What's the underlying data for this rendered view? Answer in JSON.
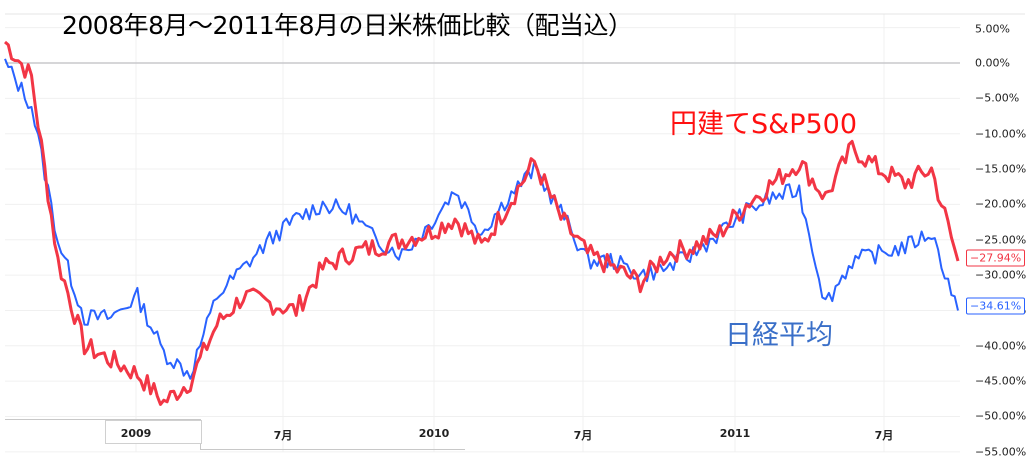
{
  "title": "2008年8月～2011年8月の日米株価比較（配当込）",
  "annotations": {
    "sp500": "円建てS&P500",
    "nikkei": "日経平均"
  },
  "y_axis": {
    "ticks": [
      "5.00%",
      "0.00%",
      "−5.00%",
      "−10.00%",
      "−15.00%",
      "−20.00%",
      "−25.00%",
      "−30.00%",
      "−35.00%",
      "−40.00%",
      "−45.00%",
      "−50.00%",
      "−55.00%"
    ]
  },
  "x_axis": {
    "ticks": [
      "2009",
      "7月",
      "2010",
      "7月",
      "2011",
      "7月"
    ]
  },
  "badges": {
    "sp500_last": "−27.94%",
    "nikkei_last": "−34.61%"
  },
  "colors": {
    "sp500": "#f23645",
    "nikkei": "#2962ff",
    "grid": "#f0f0f0"
  },
  "chart_data": {
    "type": "line",
    "title": "2008年8月～2011年8月の日米株価比較（配当込）",
    "xlabel": "",
    "ylabel": "",
    "ylim": [
      -55,
      5
    ],
    "y_ticks": [
      5,
      0,
      -5,
      -10,
      -15,
      -20,
      -25,
      -30,
      -35,
      -40,
      -45,
      -50,
      -55
    ],
    "x_tick_labels": [
      "2009",
      "7月",
      "2010",
      "7月",
      "2011",
      "7月"
    ],
    "grid": true,
    "legend": "inline annotations",
    "x": [
      "2008-08",
      "2008-09",
      "2008-10",
      "2008-11",
      "2008-12",
      "2009-01",
      "2009-02",
      "2009-03",
      "2009-04",
      "2009-05",
      "2009-06",
      "2009-07",
      "2009-08",
      "2009-09",
      "2009-10",
      "2009-11",
      "2009-12",
      "2010-01",
      "2010-02",
      "2010-03",
      "2010-04",
      "2010-05",
      "2010-06",
      "2010-07",
      "2010-08",
      "2010-09",
      "2010-10",
      "2010-11",
      "2010-12",
      "2011-01",
      "2011-02",
      "2011-03",
      "2011-04",
      "2011-05",
      "2011-06",
      "2011-07",
      "2011-08"
    ],
    "series": [
      {
        "name": "円建てS&P500",
        "color": "#f23645",
        "values": [
          3,
          -2,
          -28,
          -40,
          -42,
          -44,
          -48,
          -45,
          -37,
          -33,
          -34,
          -35,
          -29,
          -27,
          -26,
          -25,
          -24,
          -22,
          -26,
          -20,
          -14,
          -22,
          -27,
          -29,
          -31,
          -27,
          -26,
          -24,
          -20,
          -17,
          -14,
          -19,
          -12,
          -15,
          -17,
          -15,
          -28
        ]
      },
      {
        "name": "日経平均",
        "color": "#2962ff",
        "values": [
          0,
          -6,
          -25,
          -36,
          -36,
          -33,
          -41,
          -44,
          -33,
          -29,
          -25,
          -22,
          -20,
          -21,
          -25,
          -27,
          -23,
          -18,
          -24,
          -19,
          -15,
          -21,
          -28,
          -28,
          -30,
          -29,
          -27,
          -24,
          -21,
          -19,
          -18,
          -34,
          -28,
          -27,
          -26,
          -24,
          -35
        ]
      }
    ],
    "last_values": {
      "円建てS&P500": -27.94,
      "日経平均": -34.61
    }
  }
}
